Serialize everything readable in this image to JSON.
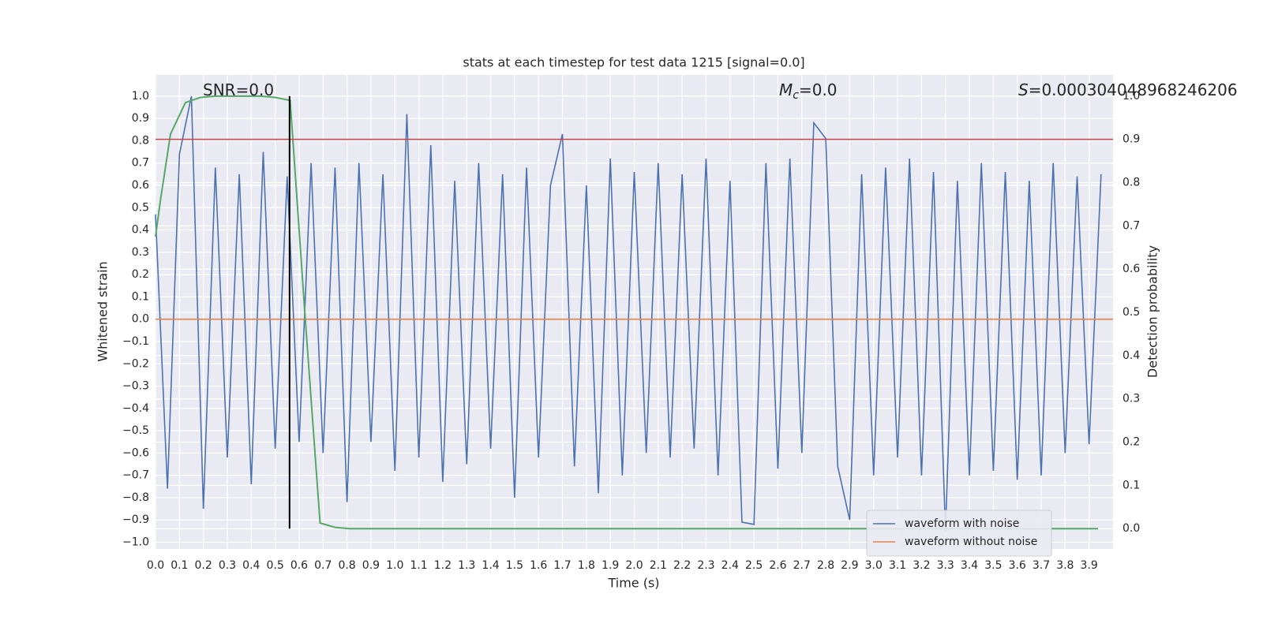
{
  "chart_data": {
    "type": "line",
    "title": "stats at each timestep for test data 1215 [signal=0.0]",
    "xlabel": "Time (s)",
    "ylabel": "Whitened strain",
    "y2label": "Detection probability",
    "annotations": [
      {
        "rest": "SNR=0.0"
      },
      {
        "symbol": "M",
        "subscript": "c",
        "rest": "=0.0"
      },
      {
        "symbol": "S",
        "rest": "=0.000304048968246206"
      }
    ],
    "xlim": [
      0,
      4.0
    ],
    "ylim": [
      -1.03,
      1.095
    ],
    "y2lim": [
      -0.047,
      1.049
    ],
    "xticks": [
      {
        "value": 0,
        "label": "0.0"
      },
      0.1,
      0.2,
      0.3,
      0.4,
      0.5,
      0.6,
      0.7,
      0.8,
      0.9,
      {
        "value": 1,
        "label": "1.0"
      },
      1.1,
      1.2,
      1.3,
      1.4,
      1.5,
      1.6,
      1.7,
      1.8,
      1.9,
      {
        "value": 2,
        "label": "2.0"
      },
      2.1,
      2.2,
      2.3,
      2.4,
      2.5,
      2.6,
      2.7,
      2.8,
      2.9,
      {
        "value": 3,
        "label": "3.0"
      },
      3.1,
      3.2,
      3.3,
      3.4,
      3.5,
      3.6,
      3.7,
      3.8,
      3.9
    ],
    "yticks": [
      {
        "value": 1,
        "label": "1.0"
      },
      0.9,
      0.8,
      0.7,
      0.6,
      0.5,
      0.4,
      0.3,
      0.2,
      0.1,
      {
        "value": 0,
        "label": "0.0"
      },
      {
        "value": -0.1,
        "label": "−0.1"
      },
      {
        "value": -0.2,
        "label": "−0.2"
      },
      {
        "value": -0.3,
        "label": "−0.3"
      },
      {
        "value": -0.4,
        "label": "−0.4"
      },
      {
        "value": -0.5,
        "label": "−0.5"
      },
      {
        "value": -0.6,
        "label": "−0.6"
      },
      {
        "value": -0.7,
        "label": "−0.7"
      },
      {
        "value": -0.8,
        "label": "−0.8"
      },
      {
        "value": -0.9,
        "label": "−0.9"
      },
      {
        "value": -1,
        "label": "−1.0"
      }
    ],
    "y2ticks": [
      {
        "value": 0,
        "label": "0.0"
      },
      0.1,
      0.2,
      0.3,
      0.4,
      0.5,
      0.6,
      0.7,
      0.8,
      0.9,
      {
        "value": 1,
        "label": "1.0"
      }
    ],
    "grid": true,
    "legend": "lower right",
    "series": [
      {
        "name": "waveform with noise",
        "color": "#4c72b0",
        "x": [
          0,
          0.05,
          0.1,
          0.15,
          0.2,
          0.25,
          0.3,
          0.35,
          0.4,
          0.45,
          0.5,
          0.55,
          0.6,
          0.65,
          0.7,
          0.75,
          0.8,
          0.85,
          0.9,
          0.95,
          1,
          1.05,
          1.1,
          1.15,
          1.2,
          1.25,
          1.3,
          1.35,
          1.4,
          1.45,
          1.5,
          1.55,
          1.6,
          1.65,
          1.7,
          1.75,
          1.8,
          1.85,
          1.9,
          1.95,
          2,
          2.05,
          2.1,
          2.15,
          2.2,
          2.25,
          2.3,
          2.35,
          2.4,
          2.45,
          2.5,
          2.55,
          2.6,
          2.65,
          2.7,
          2.75,
          2.8,
          2.85,
          2.9,
          2.95,
          3,
          3.05,
          3.1,
          3.15,
          3.2,
          3.25,
          3.3,
          3.35,
          3.4,
          3.45,
          3.5,
          3.55,
          3.6,
          3.65,
          3.7,
          3.75,
          3.8,
          3.85,
          3.9,
          3.95
        ],
        "values": [
          0.47,
          -0.76,
          0.74,
          1.0,
          -0.85,
          0.68,
          -0.62,
          0.65,
          -0.74,
          0.75,
          -0.58,
          0.64,
          -0.55,
          0.7,
          -0.6,
          0.68,
          -0.82,
          0.7,
          -0.55,
          0.65,
          -0.68,
          0.92,
          -0.62,
          0.78,
          -0.73,
          0.62,
          -0.65,
          0.7,
          -0.58,
          0.65,
          -0.8,
          0.68,
          -0.62,
          0.6,
          0.83,
          -0.66,
          0.6,
          -0.78,
          0.72,
          -0.7,
          0.66,
          -0.6,
          0.7,
          -0.62,
          0.65,
          -0.58,
          0.72,
          -0.7,
          0.62,
          -0.91,
          -0.92,
          0.7,
          -0.67,
          0.72,
          -0.6,
          0.88,
          0.81,
          -0.66,
          -0.9,
          0.65,
          -0.7,
          0.68,
          -0.62,
          0.72,
          -0.7,
          0.66,
          -0.95,
          0.62,
          -0.7,
          0.7,
          -0.68,
          0.66,
          -0.72,
          0.62,
          -0.7,
          0.7,
          -0.6,
          0.64,
          -0.56,
          0.65
        ]
      },
      {
        "name": "waveform without noise",
        "color": "#dd8452",
        "x": [
          0,
          4.0
        ],
        "values": [
          0,
          0
        ]
      },
      {
        "color": "#55a868",
        "axis": "y2",
        "x": [
          0,
          0.02,
          0.0625,
          0.125,
          0.1875,
          0.25,
          0.3125,
          0.375,
          0.4375,
          0.5,
          0.5625,
          0.625,
          0.6875,
          0.75,
          0.8125,
          1.0,
          2.0,
          3.0,
          3.9375
        ],
        "values": [
          0.675,
          0.757,
          0.912,
          0.985,
          0.997,
          1.0,
          1.0,
          1.0,
          1.0,
          0.997,
          0.99,
          0.49,
          0.013,
          0.003,
          0.0,
          0.0,
          0.0,
          0.0,
          0.0
        ]
      }
    ],
    "threshold": {
      "value": 0.9,
      "axis": "y2",
      "color": "#c44e52"
    },
    "marker_line": {
      "x": 0.56,
      "color": "#000000"
    }
  }
}
